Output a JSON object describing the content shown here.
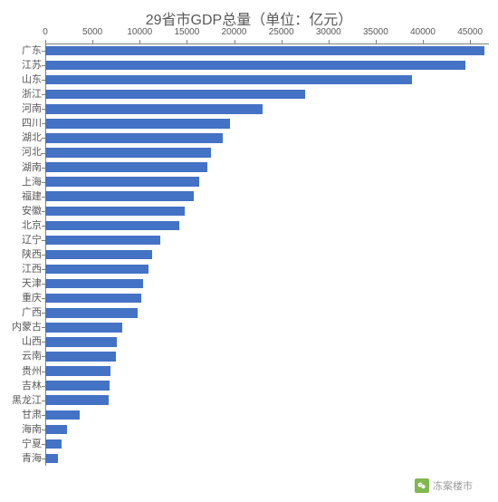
{
  "chart": {
    "type": "bar-horizontal",
    "title": "29省市GDP总量（单位：亿元）",
    "title_fontsize": 16,
    "title_color": "#595959",
    "background_color": "#ffffff",
    "bar_color": "#4472c4",
    "axis_color": "#808080",
    "label_color": "#595959",
    "label_fontsize": 11,
    "tick_fontsize": 10,
    "xlim": [
      0,
      47000
    ],
    "x_ticks": [
      0,
      5000,
      10000,
      15000,
      20000,
      25000,
      30000,
      35000,
      40000,
      45000
    ],
    "bar_gap_ratio": 0.35,
    "categories": [
      "广东",
      "江苏",
      "山东",
      "浙江",
      "河南",
      "四川",
      "湖北",
      "河北",
      "湖南",
      "上海",
      "福建",
      "安徽",
      "北京",
      "辽宁",
      "陕西",
      "江西",
      "天津",
      "重庆",
      "广西",
      "内蒙古",
      "山西",
      "云南",
      "贵州",
      "吉林",
      "黑龙江",
      "甘肃",
      "海南",
      "宁夏",
      "青海"
    ],
    "values": [
      46500,
      44500,
      38800,
      27500,
      23000,
      19600,
      18800,
      17600,
      17200,
      16300,
      15700,
      14800,
      14200,
      12200,
      11300,
      10900,
      10400,
      10200,
      9800,
      8200,
      7600,
      7500,
      6900,
      6800,
      6700,
      3600,
      2300,
      1700,
      1300
    ]
  },
  "watermark": {
    "text": "冻案楼市",
    "icon_name": "wechat-icon",
    "icon_bg": "#7fb84f",
    "text_color": "#9a9a9a"
  }
}
